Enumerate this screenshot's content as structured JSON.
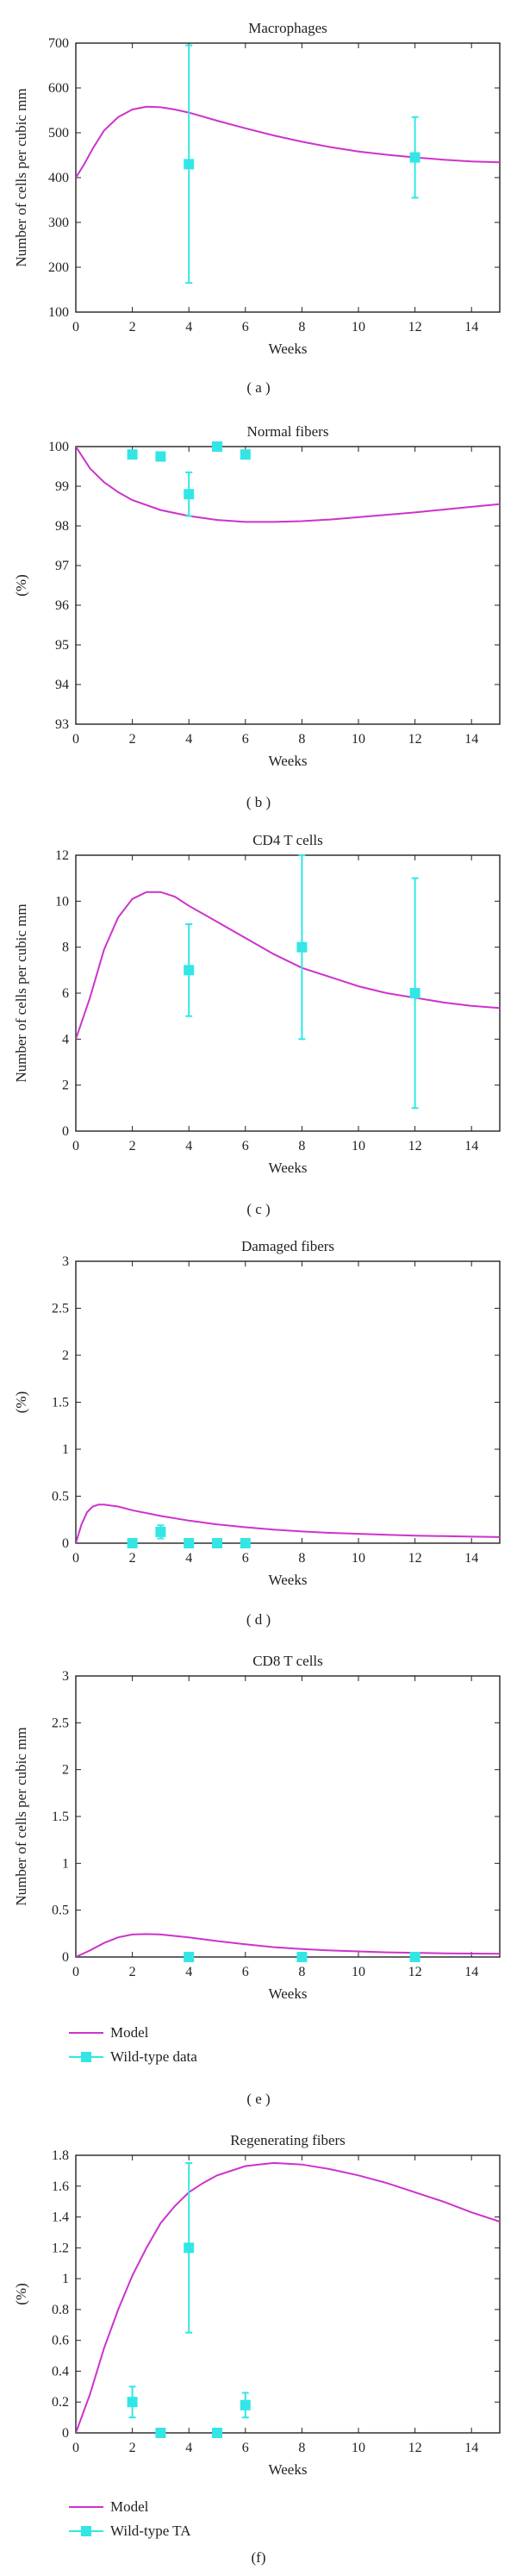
{
  "chart_data": [
    {
      "type": "line",
      "panel_label": "( a )",
      "title": "Macrophages",
      "xlabel": "Weeks",
      "ylabel": "Number of cells per cubic mm",
      "xlim": [
        0,
        15
      ],
      "ylim": [
        100,
        700
      ],
      "xticks": [
        0,
        2,
        4,
        6,
        8,
        10,
        12,
        14
      ],
      "yticks": [
        100,
        200,
        300,
        400,
        500,
        600,
        700
      ],
      "series": [
        {
          "kind": "line",
          "x": [
            0,
            0.3,
            0.6,
            1,
            1.5,
            2,
            2.5,
            3,
            3.5,
            4,
            5,
            6,
            7,
            8,
            9,
            10,
            11,
            12,
            13,
            14,
            15
          ],
          "y": [
            400,
            430,
            465,
            505,
            535,
            552,
            558,
            557,
            552,
            545,
            527,
            510,
            494,
            480,
            468,
            458,
            451,
            445,
            440,
            436,
            434
          ]
        },
        {
          "kind": "points",
          "x": [
            4,
            12
          ],
          "y": [
            430,
            445
          ],
          "err": [
            265,
            90
          ]
        }
      ],
      "legend": null
    },
    {
      "type": "line",
      "panel_label": "( b )",
      "title": "Normal fibers",
      "xlabel": "Weeks",
      "ylabel": "(%)",
      "xlim": [
        0,
        15
      ],
      "ylim": [
        93,
        100
      ],
      "xticks": [
        0,
        2,
        4,
        6,
        8,
        10,
        12,
        14
      ],
      "yticks": [
        93,
        94,
        95,
        96,
        97,
        98,
        99,
        100
      ],
      "series": [
        {
          "kind": "line",
          "x": [
            0,
            0.5,
            1,
            1.5,
            2,
            3,
            4,
            5,
            6,
            7,
            8,
            9,
            10,
            11,
            12,
            13,
            14,
            15
          ],
          "y": [
            100,
            99.45,
            99.1,
            98.85,
            98.65,
            98.4,
            98.25,
            98.15,
            98.1,
            98.1,
            98.12,
            98.16,
            98.22,
            98.28,
            98.34,
            98.41,
            98.48,
            98.55
          ]
        },
        {
          "kind": "points",
          "x": [
            2,
            3,
            4,
            5,
            6
          ],
          "y": [
            99.8,
            99.75,
            98.8,
            100,
            99.8
          ],
          "err": [
            0.1,
            0.1,
            0.55,
            0.05,
            0.1
          ]
        }
      ],
      "legend": null
    },
    {
      "type": "line",
      "panel_label": "( c )",
      "title": "CD4 T cells",
      "xlabel": "Weeks",
      "ylabel": "Number of cells per cubic mm",
      "xlim": [
        0,
        15
      ],
      "ylim": [
        0,
        12
      ],
      "xticks": [
        0,
        2,
        4,
        6,
        8,
        10,
        12,
        14
      ],
      "yticks": [
        0,
        2,
        4,
        6,
        8,
        10,
        12
      ],
      "series": [
        {
          "kind": "line",
          "x": [
            0,
            0.5,
            1,
            1.5,
            2,
            2.5,
            3,
            3.5,
            4,
            5,
            6,
            7,
            8,
            9,
            10,
            11,
            12,
            13,
            14,
            15
          ],
          "y": [
            4,
            5.8,
            7.9,
            9.3,
            10.1,
            10.4,
            10.4,
            10.2,
            9.8,
            9.1,
            8.4,
            7.7,
            7.1,
            6.7,
            6.3,
            6.0,
            5.8,
            5.6,
            5.45,
            5.35
          ]
        },
        {
          "kind": "points",
          "x": [
            4,
            8,
            12
          ],
          "y": [
            7,
            8,
            6
          ],
          "err": [
            2,
            4,
            5
          ]
        }
      ],
      "legend": null
    },
    {
      "type": "line",
      "panel_label": "( d )",
      "title": "Damaged fibers",
      "xlabel": "Weeks",
      "ylabel": "(%)",
      "xlim": [
        0,
        15
      ],
      "ylim": [
        0,
        3
      ],
      "xticks": [
        0,
        2,
        4,
        6,
        8,
        10,
        12,
        14
      ],
      "yticks": [
        0,
        0.5,
        1,
        1.5,
        2,
        2.5,
        3
      ],
      "series": [
        {
          "kind": "line",
          "x": [
            0,
            0.2,
            0.4,
            0.6,
            0.8,
            1,
            1.5,
            2,
            3,
            4,
            5,
            6,
            7,
            8,
            9,
            10,
            11,
            12,
            13,
            14,
            15
          ],
          "y": [
            0,
            0.2,
            0.33,
            0.39,
            0.41,
            0.41,
            0.39,
            0.35,
            0.29,
            0.24,
            0.2,
            0.17,
            0.145,
            0.125,
            0.11,
            0.1,
            0.09,
            0.08,
            0.075,
            0.07,
            0.065
          ]
        },
        {
          "kind": "points",
          "x": [
            2,
            3,
            4,
            5,
            6
          ],
          "y": [
            0,
            0.12,
            0,
            0,
            0
          ],
          "err": [
            0,
            0.07,
            0,
            0,
            0
          ]
        }
      ],
      "legend": null
    },
    {
      "type": "line",
      "panel_label": "( e )",
      "title": "CD8 T cells",
      "xlabel": "Weeks",
      "ylabel": "Number of cells per cubic mm",
      "xlim": [
        0,
        15
      ],
      "ylim": [
        0,
        3
      ],
      "xticks": [
        0,
        2,
        4,
        6,
        8,
        10,
        12,
        14
      ],
      "yticks": [
        0,
        0.5,
        1,
        1.5,
        2,
        2.5,
        3
      ],
      "series": [
        {
          "kind": "line",
          "x": [
            0,
            0.5,
            1,
            1.5,
            2,
            2.5,
            3,
            4,
            5,
            6,
            7,
            8,
            9,
            10,
            11,
            12,
            13,
            14,
            15
          ],
          "y": [
            0,
            0.07,
            0.15,
            0.21,
            0.24,
            0.245,
            0.24,
            0.21,
            0.17,
            0.135,
            0.105,
            0.085,
            0.07,
            0.06,
            0.05,
            0.045,
            0.04,
            0.037,
            0.035
          ]
        },
        {
          "kind": "points",
          "x": [
            4,
            8,
            12
          ],
          "y": [
            0,
            0,
            0
          ],
          "err": [
            0,
            0,
            0
          ]
        }
      ],
      "legend": {
        "entries": [
          "Model",
          "Wild-type data"
        ]
      }
    },
    {
      "type": "line",
      "panel_label": "(f)",
      "title": "Regenerating fibers",
      "xlabel": "Weeks",
      "ylabel": "(%)",
      "xlim": [
        0,
        15
      ],
      "ylim": [
        0,
        1.8
      ],
      "xticks": [
        0,
        2,
        4,
        6,
        8,
        10,
        12,
        14
      ],
      "yticks": [
        0,
        0.2,
        0.4,
        0.6,
        0.8,
        1,
        1.2,
        1.4,
        1.6,
        1.8
      ],
      "series": [
        {
          "kind": "line",
          "x": [
            0,
            0.5,
            1,
            1.5,
            2,
            2.5,
            3,
            3.5,
            4,
            4.5,
            5,
            6,
            7,
            8,
            9,
            10,
            11,
            12,
            13,
            14,
            15
          ],
          "y": [
            0,
            0.25,
            0.55,
            0.8,
            1.02,
            1.2,
            1.36,
            1.47,
            1.56,
            1.62,
            1.67,
            1.73,
            1.75,
            1.74,
            1.71,
            1.67,
            1.62,
            1.56,
            1.5,
            1.43,
            1.37
          ]
        },
        {
          "kind": "points",
          "x": [
            2,
            3,
            4,
            5,
            6
          ],
          "y": [
            0.2,
            0,
            1.2,
            0,
            0.18
          ],
          "err": [
            0.1,
            0,
            0.55,
            0,
            0.08
          ]
        }
      ],
      "legend": {
        "entries": [
          "Model",
          "Wild-type TA"
        ]
      }
    }
  ],
  "colors": {
    "model": "#cc33cc",
    "data": "#33e6e6",
    "axis": "#222222"
  }
}
